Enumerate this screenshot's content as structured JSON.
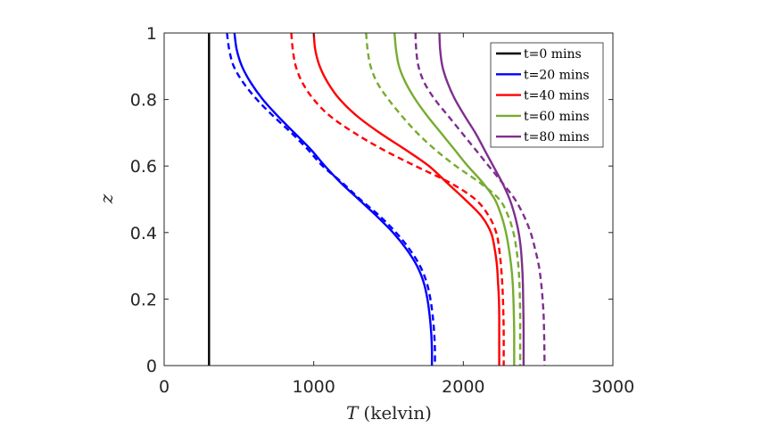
{
  "chart_data": {
    "type": "line",
    "title": "",
    "xlabel_symbol": "T",
    "xlabel_unit": "(kelvin)",
    "ylabel": "z",
    "xlim": [
      0,
      3000
    ],
    "ylim": [
      0,
      1
    ],
    "x_ticks": [
      0,
      1000,
      2000,
      3000
    ],
    "x_tick_labels": [
      "0",
      "1000",
      "2000",
      "3000"
    ],
    "y_ticks": [
      0,
      0.2,
      0.4,
      0.6,
      0.8,
      1
    ],
    "y_tick_labels": [
      "0",
      "0.2",
      "0.4",
      "0.6",
      "0.8",
      "1"
    ],
    "grid": false,
    "legend_position": "top-right",
    "z": [
      1.0,
      0.95,
      0.9,
      0.85,
      0.8,
      0.75,
      0.7,
      0.65,
      0.6,
      0.55,
      0.5,
      0.45,
      0.4,
      0.35,
      0.3,
      0.25,
      0.2,
      0.15,
      0.1,
      0.05,
      0.0
    ],
    "series": [
      {
        "name": "t=0 mins",
        "color": "#000000",
        "style": "solid",
        "T": [
          300,
          300,
          300,
          300,
          300,
          300,
          300,
          300,
          300,
          300,
          300,
          300,
          300,
          300,
          300,
          300,
          300,
          300,
          300,
          300,
          300
        ]
      },
      {
        "name": "t=20 mins",
        "color": "#0000ff",
        "style": "solid",
        "T": [
          470,
          485,
          520,
          580,
          660,
          760,
          870,
          980,
          1075,
          1180,
          1300,
          1420,
          1530,
          1620,
          1690,
          1735,
          1760,
          1775,
          1785,
          1790,
          1790
        ]
      },
      {
        "name": "",
        "color": "#0000ff",
        "style": "dashed",
        "T": [
          420,
          435,
          465,
          530,
          620,
          730,
          850,
          960,
          1060,
          1190,
          1310,
          1440,
          1550,
          1640,
          1710,
          1755,
          1780,
          1795,
          1805,
          1810,
          1810
        ]
      },
      {
        "name": "t=40 mins",
        "color": "#ff0000",
        "style": "solid",
        "T": [
          1000,
          1010,
          1040,
          1095,
          1175,
          1290,
          1440,
          1610,
          1770,
          1890,
          2010,
          2120,
          2185,
          2210,
          2225,
          2232,
          2238,
          2240,
          2240,
          2240,
          2240
        ]
      },
      {
        "name": "",
        "color": "#ff0000",
        "style": "dashed",
        "T": [
          850,
          860,
          880,
          925,
          1000,
          1110,
          1270,
          1460,
          1680,
          1910,
          2080,
          2170,
          2220,
          2240,
          2252,
          2260,
          2265,
          2268,
          2270,
          2270,
          2270
        ]
      },
      {
        "name": "t=60 mins",
        "color": "#77ac30",
        "style": "solid",
        "T": [
          1540,
          1550,
          1570,
          1615,
          1680,
          1760,
          1850,
          1940,
          2030,
          2130,
          2210,
          2255,
          2285,
          2305,
          2320,
          2330,
          2335,
          2338,
          2340,
          2340,
          2340
        ]
      },
      {
        "name": "",
        "color": "#77ac30",
        "style": "dashed",
        "T": [
          1350,
          1360,
          1380,
          1425,
          1500,
          1590,
          1690,
          1810,
          1950,
          2110,
          2240,
          2300,
          2335,
          2355,
          2368,
          2375,
          2378,
          2380,
          2380,
          2380,
          2380
        ]
      },
      {
        "name": "t=80 mins",
        "color": "#7e2f8e",
        "style": "solid",
        "T": [
          1840,
          1845,
          1860,
          1895,
          1945,
          2010,
          2080,
          2140,
          2200,
          2260,
          2310,
          2345,
          2370,
          2385,
          2393,
          2398,
          2400,
          2402,
          2403,
          2403,
          2403
        ]
      },
      {
        "name": "",
        "color": "#7e2f8e",
        "style": "dashed",
        "T": [
          1680,
          1685,
          1700,
          1740,
          1810,
          1900,
          1990,
          2080,
          2170,
          2260,
          2345,
          2405,
          2450,
          2480,
          2505,
          2520,
          2530,
          2537,
          2540,
          2542,
          2543
        ]
      }
    ]
  }
}
